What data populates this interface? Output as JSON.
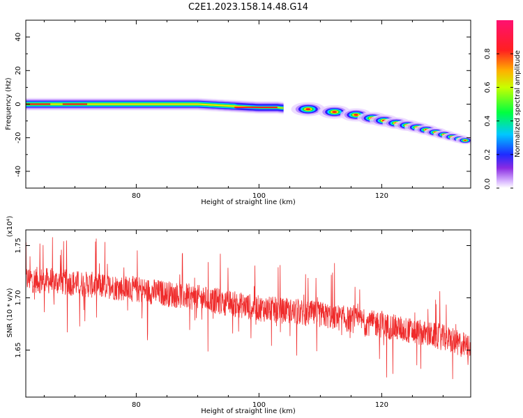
{
  "figure": {
    "title": "C2E1.2023.158.14.48.G14"
  },
  "chart_data": [
    {
      "type": "heatmap",
      "title": "",
      "xlabel": "Height of straight line (km)",
      "ylabel": "Frequency (Hz)",
      "xlim": [
        62,
        134.5
      ],
      "ylim": [
        -50,
        50
      ],
      "xticks": [
        80,
        100,
        120
      ],
      "yticks": [
        -40,
        -20,
        0,
        20,
        40
      ],
      "x_tick_labels": [
        "80",
        "100",
        "120"
      ],
      "y_tick_labels": [
        "-40",
        "-20",
        "0",
        "20",
        "40"
      ],
      "colorbar": {
        "label": "Normalized spectral amplitude",
        "range": [
          0.0,
          1.0
        ],
        "ticks": [
          0.0,
          0.2,
          0.4,
          0.6,
          0.8
        ],
        "tick_labels": [
          "0.0",
          "0.2",
          "0.4",
          "0.6",
          "0.8"
        ],
        "colormap": "rainbow (violet-blue-cyan-green-yellow-orange-red-magenta)"
      },
      "ridge": {
        "description": "frequency trace of peak spectral amplitude vs height",
        "x": [
          62,
          70,
          80,
          90,
          95,
          100,
          103,
          106,
          108,
          110,
          112,
          114,
          116,
          118,
          120,
          122,
          124,
          126,
          128,
          130,
          132,
          134
        ],
        "freq": [
          0,
          0,
          0,
          0,
          -1,
          -2,
          -2,
          -3,
          -3,
          -3.5,
          -4.5,
          -5.5,
          -6.5,
          -8,
          -9.5,
          -11,
          -12.5,
          -14,
          -16,
          -18,
          -20,
          -22
        ]
      }
    },
    {
      "type": "line",
      "title": "",
      "xlabel": "Height of straight line (km)",
      "ylabel": "SNR (10 * v/v)",
      "y_multiplier_label": "(x10⁴)",
      "xlim": [
        62,
        134.5
      ],
      "ylim": [
        1.605,
        1.765
      ],
      "xticks": [
        80,
        100,
        120
      ],
      "yticks": [
        1.65,
        1.7,
        1.75
      ],
      "x_tick_labels": [
        "80",
        "100",
        "120"
      ],
      "y_tick_labels": [
        "1.65",
        "1.70",
        "1.75"
      ],
      "series": [
        {
          "color": "#ef2b2b",
          "trend_x": [
            62,
            70,
            80,
            90,
            100,
            110,
            120,
            130,
            134.5
          ],
          "trend_y": [
            1.718,
            1.714,
            1.708,
            1.7,
            1.69,
            1.684,
            1.674,
            1.662,
            1.652
          ],
          "noise_amplitude": 0.018
        }
      ]
    }
  ]
}
